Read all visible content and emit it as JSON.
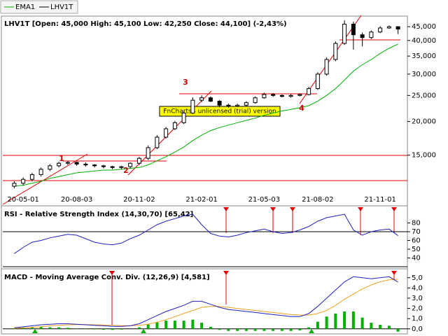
{
  "chart_data": [
    {
      "type": "candlestick",
      "name": "LHV1T",
      "color": "#000000",
      "title": "LHV1T [Open: 45,000  High: 45,100  Low: 42,250  Close: 44,100] (-2,43%)",
      "categories": [
        null,
        "20-05-01",
        null,
        null,
        null,
        null,
        null,
        "20-08-03",
        null,
        null,
        null,
        null,
        null,
        null,
        "20-11-02",
        null,
        null,
        null,
        null,
        null,
        null,
        "21-02-01",
        null,
        null,
        null,
        null,
        null,
        null,
        "21-05-03",
        null,
        null,
        null,
        null,
        null,
        "21-08-02",
        null,
        null,
        null,
        null,
        null,
        null,
        "21-11-01",
        null,
        null
      ],
      "open": [
        11500,
        11800,
        12200,
        12700,
        13300,
        13700,
        14000,
        14100,
        13900,
        13800,
        13700,
        13600,
        13500,
        13600,
        14000,
        14600,
        16000,
        17500,
        18800,
        19800,
        21500,
        24000,
        24500,
        23800,
        23000,
        22800,
        23000,
        23500,
        24500,
        25200,
        25000,
        24800,
        25000,
        25200,
        26500,
        30000,
        34000,
        39000,
        46000,
        42000,
        41000,
        43000,
        44500,
        45000
      ],
      "high": [
        12000,
        12400,
        12900,
        13500,
        13900,
        14200,
        14300,
        14200,
        14100,
        13900,
        13800,
        13700,
        13700,
        14100,
        14800,
        16300,
        17800,
        19100,
        20100,
        21900,
        24600,
        25000,
        24800,
        24000,
        23300,
        23300,
        23800,
        24800,
        25600,
        25500,
        25200,
        25300,
        25400,
        26900,
        30500,
        34600,
        39700,
        47500,
        47000,
        42800,
        43600,
        45200,
        45500,
        45100
      ],
      "low": [
        11300,
        11600,
        12000,
        12500,
        13100,
        13500,
        13800,
        13700,
        13600,
        13500,
        13400,
        13300,
        13300,
        13400,
        13800,
        14400,
        15800,
        17300,
        18600,
        19600,
        21300,
        23600,
        23600,
        22600,
        22500,
        22600,
        22800,
        23300,
        24300,
        24700,
        24600,
        24500,
        24800,
        25000,
        26200,
        29600,
        33500,
        38500,
        37000,
        38000,
        40500,
        42600,
        44200,
        42250
      ],
      "close": [
        11800,
        12200,
        12700,
        13300,
        13700,
        14000,
        14100,
        13900,
        13800,
        13700,
        13600,
        13500,
        13600,
        14000,
        14600,
        16000,
        17500,
        18800,
        19800,
        21500,
        24000,
        24500,
        23800,
        23000,
        22800,
        23000,
        23500,
        24500,
        25200,
        25000,
        24800,
        25000,
        25200,
        26500,
        30000,
        34000,
        39000,
        46000,
        42000,
        41000,
        43000,
        44500,
        45000,
        44100
      ],
      "series": [
        {
          "name": "EMA1",
          "color": "#00b000",
          "values": [
            11500,
            11600,
            11800,
            12000,
            12300,
            12500,
            12700,
            12900,
            13000,
            13100,
            13200,
            13200,
            13300,
            13400,
            13500,
            13800,
            14300,
            14800,
            15400,
            16100,
            17000,
            17800,
            18500,
            19000,
            19400,
            19800,
            20200,
            20600,
            21100,
            21500,
            21900,
            22200,
            22500,
            22900,
            23800,
            25000,
            26500,
            28500,
            30800,
            32500,
            34000,
            35800,
            37400,
            38800
          ]
        }
      ],
      "ylim": [
        11100,
        48100
      ],
      "log_scale": true,
      "yticks": [
        {
          "value": 15000,
          "label": "15,000"
        },
        {
          "value": 20000,
          "label": "20,000"
        },
        {
          "value": 25000,
          "label": "25,000"
        },
        {
          "value": 30000,
          "label": "30,000"
        },
        {
          "value": 35000,
          "label": "35,000"
        },
        {
          "value": 40000,
          "label": "40,000"
        },
        {
          "value": 45000,
          "label": "45,000"
        }
      ],
      "annotations": [
        "1",
        "2",
        "3",
        "4"
      ],
      "watermark": "FnCharts - unlicensed (trial) version"
    },
    {
      "type": "line",
      "title": "RSI - Relative Strength Index (14,30,70) [65,42]",
      "color": "#2020c0",
      "values": [
        45,
        52,
        58,
        60,
        63,
        65,
        67,
        66,
        62,
        58,
        56,
        55,
        57,
        62,
        66,
        72,
        78,
        82,
        85,
        88,
        90,
        78,
        68,
        65,
        64,
        66,
        69,
        71,
        73,
        70,
        68,
        69,
        72,
        76,
        82,
        86,
        88,
        90,
        72,
        66,
        70,
        72,
        73,
        65.42
      ],
      "levels": [
        70,
        30
      ],
      "ylim": [
        30,
        98
      ],
      "yticks": [
        40,
        50,
        60,
        70,
        80
      ]
    },
    {
      "type": "macd",
      "title": "MACD - Moving Average Conv. Div. (12,26,9) [4,581]",
      "color": "#2020c0",
      "signal_color": "#f0a020",
      "histogram_color": "#00b000",
      "values": [
        0.1,
        0.2,
        0.3,
        0.4,
        0.45,
        0.5,
        0.5,
        0.45,
        0.4,
        0.35,
        0.3,
        0.25,
        0.25,
        0.3,
        0.5,
        0.9,
        1.3,
        1.7,
        2.0,
        2.3,
        2.7,
        2.7,
        2.4,
        2.1,
        1.9,
        1.8,
        1.7,
        1.6,
        1.5,
        1.4,
        1.3,
        1.2,
        1.2,
        1.5,
        2.2,
        3.0,
        3.8,
        4.6,
        5.1,
        5.0,
        4.9,
        5.0,
        5.1,
        4.581
      ],
      "signal": [
        0.05,
        0.1,
        0.15,
        0.2,
        0.3,
        0.35,
        0.4,
        0.42,
        0.42,
        0.4,
        0.38,
        0.35,
        0.32,
        0.3,
        0.35,
        0.45,
        0.65,
        0.9,
        1.2,
        1.5,
        1.8,
        2.1,
        2.2,
        2.2,
        2.1,
        2.0,
        1.9,
        1.8,
        1.7,
        1.6,
        1.5,
        1.4,
        1.35,
        1.35,
        1.5,
        1.8,
        2.3,
        2.9,
        3.4,
        3.9,
        4.3,
        4.6,
        4.8,
        4.85
      ],
      "histogram": [
        0.05,
        0.1,
        0.15,
        0.2,
        0.15,
        0.15,
        0.1,
        0.03,
        -0.02,
        -0.05,
        -0.08,
        -0.1,
        -0.07,
        0,
        0.15,
        0.45,
        0.65,
        0.8,
        0.8,
        0.8,
        0.9,
        0.6,
        0.2,
        -0.1,
        -0.2,
        -0.2,
        -0.2,
        -0.2,
        -0.2,
        -0.2,
        -0.2,
        -0.2,
        -0.15,
        0.15,
        0.7,
        1.2,
        1.5,
        1.7,
        1.7,
        1.1,
        0.6,
        0.4,
        0.3,
        -0.27
      ],
      "ylim": [
        -0.15,
        5.6
      ],
      "yticks": [
        {
          "value": 0,
          "label": "0,0"
        },
        {
          "value": 1,
          "label": "1,0"
        },
        {
          "value": 2,
          "label": "2,0"
        },
        {
          "value": 3,
          "label": "3,0"
        },
        {
          "value": 4,
          "label": "4,0"
        },
        {
          "value": 5,
          "label": "5,0"
        }
      ]
    }
  ]
}
